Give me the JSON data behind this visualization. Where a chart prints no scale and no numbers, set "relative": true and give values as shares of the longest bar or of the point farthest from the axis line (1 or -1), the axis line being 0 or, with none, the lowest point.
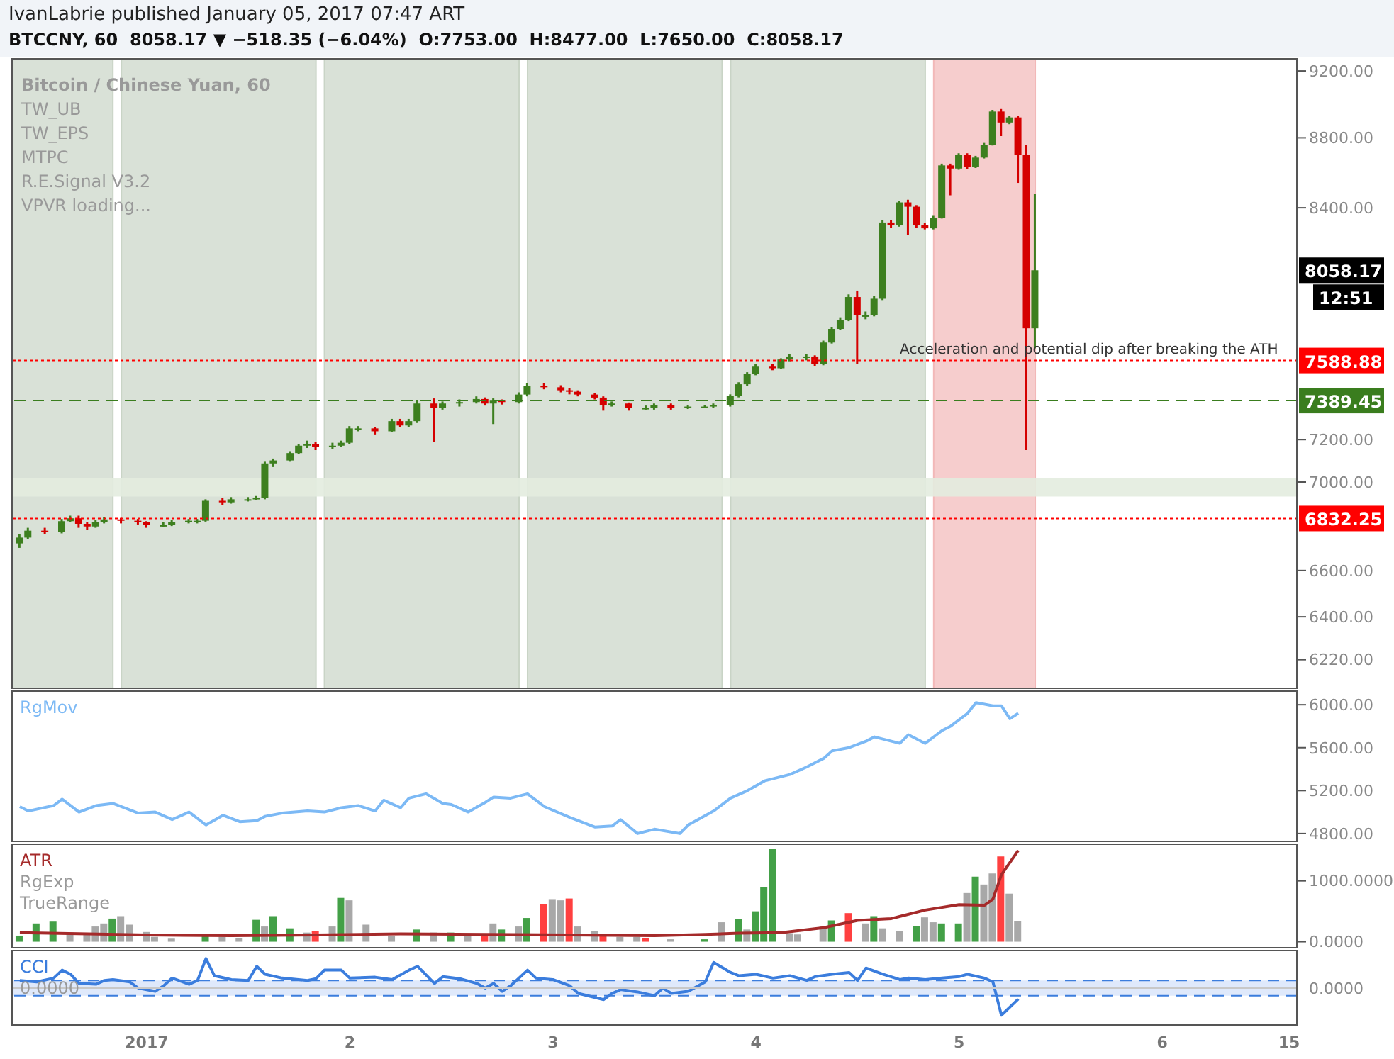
{
  "chart_data": [
    {
      "type": "candlestick",
      "title": "IvanLabrie published January 05, 2017 07:47 ART",
      "subtitle": "BTCCNY, 60  8058.17 ▼ −518.35 (−6.04%)  O:7753.00  H:8477.00  L:7650.00  C:8058.17",
      "x": [
        "2016-12-31T09:00",
        "2016-12-31T10:00",
        "2016-12-31T12:00",
        "2016-12-31T14:00",
        "2016-12-31T15:00",
        "2016-12-31T16:00",
        "2016-12-31T17:00",
        "2016-12-31T18:00",
        "2016-12-31T19:00",
        "2016-12-31T21:00",
        "2016-12-31T23:00",
        "2017-01-01T00:00",
        "2017-01-01T02:00",
        "2017-01-01T03:00",
        "2017-01-01T05:00",
        "2017-01-01T06:00",
        "2017-01-01T07:00",
        "2017-01-01T09:00",
        "2017-01-01T10:00",
        "2017-01-01T12:00",
        "2017-01-01T13:00",
        "2017-01-01T14:00",
        "2017-01-01T15:00",
        "2017-01-01T17:00",
        "2017-01-01T18:00",
        "2017-01-01T19:00",
        "2017-01-01T20:00",
        "2017-01-01T22:00",
        "2017-01-01T23:00",
        "2017-01-02T00:00",
        "2017-01-02T01:00",
        "2017-01-02T03:00",
        "2017-01-02T05:00",
        "2017-01-02T06:00",
        "2017-01-02T07:00",
        "2017-01-02T08:00",
        "2017-01-02T10:00",
        "2017-01-02T11:00",
        "2017-01-02T13:00",
        "2017-01-02T15:00",
        "2017-01-02T16:00",
        "2017-01-02T17:00",
        "2017-01-02T18:00",
        "2017-01-02T20:00",
        "2017-01-02T21:00",
        "2017-01-02T23:00",
        "2017-01-03T01:00",
        "2017-01-03T02:00",
        "2017-01-03T03:00",
        "2017-01-03T05:00",
        "2017-01-03T06:00",
        "2017-01-03T07:00",
        "2017-01-03T09:00",
        "2017-01-03T11:00",
        "2017-01-03T12:00",
        "2017-01-03T14:00",
        "2017-01-03T16:00",
        "2017-01-03T18:00",
        "2017-01-03T19:00",
        "2017-01-03T21:00",
        "2017-01-03T22:00",
        "2017-01-03T23:00",
        "2017-01-04T00:00",
        "2017-01-04T02:00",
        "2017-01-04T03:00",
        "2017-01-04T04:00",
        "2017-01-04T06:00",
        "2017-01-04T07:00",
        "2017-01-04T08:00",
        "2017-01-04T09:00",
        "2017-01-04T10:00",
        "2017-01-04T11:00",
        "2017-01-04T12:00",
        "2017-01-04T13:00",
        "2017-01-04T14:00",
        "2017-01-04T15:00",
        "2017-01-04T16:00",
        "2017-01-04T17:00",
        "2017-01-04T18:00",
        "2017-01-04T19:00",
        "2017-01-04T20:00",
        "2017-01-04T21:00",
        "2017-01-04T22:00",
        "2017-01-04T23:00",
        "2017-01-05T00:00",
        "2017-01-05T01:00",
        "2017-01-05T02:00",
        "2017-01-05T03:00",
        "2017-01-05T04:00",
        "2017-01-05T05:00",
        "2017-01-05T06:00",
        "2017-01-05T07:00",
        "2017-01-05T08:00",
        "2017-01-05T09:00"
      ],
      "ohlc": [
        [
          6720,
          6760,
          6700,
          6746
        ],
        [
          6746,
          6790,
          6740,
          6777
        ],
        [
          6777,
          6790,
          6760,
          6770
        ],
        [
          6770,
          6830,
          6765,
          6820
        ],
        [
          6820,
          6845,
          6815,
          6833
        ],
        [
          6833,
          6845,
          6790,
          6808
        ],
        [
          6808,
          6815,
          6780,
          6796
        ],
        [
          6796,
          6825,
          6790,
          6815
        ],
        [
          6815,
          6840,
          6810,
          6828
        ],
        [
          6828,
          6835,
          6810,
          6822
        ],
        [
          6822,
          6830,
          6805,
          6815
        ],
        [
          6815,
          6820,
          6790,
          6802
        ],
        [
          6802,
          6815,
          6795,
          6802
        ],
        [
          6802,
          6825,
          6798,
          6815
        ],
        [
          6815,
          6830,
          6810,
          6822
        ],
        [
          6822,
          6830,
          6810,
          6822
        ],
        [
          6822,
          6920,
          6818,
          6913
        ],
        [
          6913,
          6925,
          6895,
          6906
        ],
        [
          6906,
          6930,
          6900,
          6920
        ],
        [
          6920,
          6930,
          6910,
          6920
        ],
        [
          6920,
          6935,
          6915,
          6926
        ],
        [
          6926,
          7095,
          6920,
          7087
        ],
        [
          7087,
          7110,
          7070,
          7101
        ],
        [
          7101,
          7145,
          7095,
          7136
        ],
        [
          7136,
          7180,
          7130,
          7171
        ],
        [
          7171,
          7195,
          7160,
          7178
        ],
        [
          7178,
          7190,
          7150,
          7164
        ],
        [
          7164,
          7185,
          7155,
          7171
        ],
        [
          7171,
          7195,
          7165,
          7185
        ],
        [
          7185,
          7265,
          7180,
          7254
        ],
        [
          7254,
          7265,
          7240,
          7254
        ],
        [
          7254,
          7260,
          7225,
          7240
        ],
        [
          7240,
          7300,
          7235,
          7289
        ],
        [
          7289,
          7300,
          7260,
          7268
        ],
        [
          7268,
          7300,
          7260,
          7289
        ],
        [
          7289,
          7390,
          7280,
          7375
        ],
        [
          7375,
          7400,
          7190,
          7353
        ],
        [
          7353,
          7385,
          7345,
          7375
        ],
        [
          7375,
          7395,
          7360,
          7382
        ],
        [
          7382,
          7410,
          7375,
          7397
        ],
        [
          7397,
          7405,
          7365,
          7375
        ],
        [
          7375,
          7400,
          7275,
          7389
        ],
        [
          7389,
          7395,
          7370,
          7382
        ],
        [
          7382,
          7430,
          7375,
          7419
        ],
        [
          7419,
          7475,
          7410,
          7463
        ],
        [
          7463,
          7475,
          7445,
          7455
        ],
        [
          7455,
          7465,
          7430,
          7440
        ],
        [
          7440,
          7450,
          7420,
          7433
        ],
        [
          7433,
          7440,
          7410,
          7419
        ],
        [
          7419,
          7425,
          7395,
          7404
        ],
        [
          7404,
          7410,
          7340,
          7368
        ],
        [
          7368,
          7385,
          7360,
          7375
        ],
        [
          7375,
          7380,
          7340,
          7353
        ],
        [
          7353,
          7365,
          7345,
          7353
        ],
        [
          7353,
          7375,
          7345,
          7368
        ],
        [
          7368,
          7375,
          7345,
          7353
        ],
        [
          7353,
          7368,
          7348,
          7360
        ],
        [
          7360,
          7368,
          7352,
          7360
        ],
        [
          7360,
          7375,
          7355,
          7368
        ],
        [
          7368,
          7420,
          7360,
          7411
        ],
        [
          7411,
          7480,
          7405,
          7470
        ],
        [
          7470,
          7530,
          7460,
          7522
        ],
        [
          7522,
          7570,
          7515,
          7558
        ],
        [
          7558,
          7570,
          7540,
          7550
        ],
        [
          7550,
          7600,
          7545,
          7594
        ],
        [
          7594,
          7620,
          7585,
          7609
        ],
        [
          7609,
          7620,
          7590,
          7609
        ],
        [
          7609,
          7615,
          7560,
          7570
        ],
        [
          7570,
          7690,
          7565,
          7680
        ],
        [
          7680,
          7760,
          7675,
          7750
        ],
        [
          7750,
          7810,
          7745,
          7797
        ],
        [
          7797,
          7930,
          7790,
          7916
        ],
        [
          7916,
          7950,
          7570,
          7820
        ],
        [
          7820,
          7840,
          7800,
          7820
        ],
        [
          7820,
          7920,
          7815,
          7907
        ],
        [
          7907,
          8330,
          7900,
          8318
        ],
        [
          8318,
          8330,
          8290,
          8302
        ],
        [
          8302,
          8440,
          8295,
          8430
        ],
        [
          8430,
          8445,
          8250,
          8406
        ],
        [
          8406,
          8415,
          8290,
          8302
        ],
        [
          8302,
          8315,
          8280,
          8286
        ],
        [
          8286,
          8355,
          8280,
          8345
        ],
        [
          8345,
          8650,
          8340,
          8640
        ],
        [
          8640,
          8650,
          8470,
          8622
        ],
        [
          8622,
          8710,
          8615,
          8700
        ],
        [
          8700,
          8710,
          8620,
          8630
        ],
        [
          8630,
          8695,
          8625,
          8685
        ],
        [
          8685,
          8770,
          8680,
          8760
        ],
        [
          8760,
          8965,
          8755,
          8955
        ],
        [
          8955,
          8970,
          8810,
          8890
        ],
        [
          8890,
          8930,
          8880,
          8920
        ],
        [
          8920,
          8930,
          8540,
          8700
        ],
        [
          8700,
          8760,
          7150,
          7753
        ],
        [
          7753,
          8477,
          7650,
          8058.17
        ]
      ],
      "xlim": [
        "2016-12-31T08:00",
        "2017-01-06T16:00"
      ],
      "ylim": [
        6100,
        9270
      ],
      "log": "y",
      "tick_labels": "y",
      "yticks": [
        {
          "value": 6220,
          "label": "6220.00"
        },
        {
          "value": 6400,
          "label": "6400.00"
        },
        {
          "value": 6600,
          "label": "6600.00"
        },
        {
          "value": 7000,
          "label": "7000.00"
        },
        {
          "value": 7200,
          "label": "7200.00"
        },
        {
          "value": 8400,
          "label": "8400.00"
        },
        {
          "value": 8800,
          "label": "8800.00"
        },
        {
          "value": 9200,
          "label": "9200.00"
        }
      ],
      "ref_lines": [
        {
          "axis": "y",
          "value": 7588.88,
          "label": "7588.88",
          "color": "#ff0000",
          "line_style": "dotted"
        },
        {
          "axis": "y",
          "value": 7389.45,
          "label": "7389.45",
          "color": "#3a7d1e",
          "line_style": "dashed"
        },
        {
          "axis": "y",
          "value": 6832.25,
          "label": "6832.25",
          "color": "#ff0000",
          "line_style": "dotted"
        }
      ],
      "bands": [
        {
          "axis": "x",
          "from": "2016-12-31T08:00",
          "to": "2016-12-31T20:00",
          "color": "#c9d4c6"
        },
        {
          "axis": "x",
          "from": "2016-12-31T21:00",
          "to": "2017-01-01T20:00",
          "color": "#c9d4c6"
        },
        {
          "axis": "x",
          "from": "2017-01-01T21:00",
          "to": "2017-01-02T20:00",
          "color": "#c9d4c6"
        },
        {
          "axis": "x",
          "from": "2017-01-02T21:00",
          "to": "2017-01-03T20:00",
          "color": "#c9d4c6"
        },
        {
          "axis": "x",
          "from": "2017-01-03T21:00",
          "to": "2017-01-04T20:00",
          "color": "#c9d4c6"
        },
        {
          "axis": "x",
          "from": "2017-01-04T21:00",
          "to": "2017-01-05T09:00",
          "color": "#f2b8b8"
        },
        {
          "axis": "y",
          "from": 6933,
          "to": 7018,
          "color": "#e3ecdf"
        }
      ],
      "annotations": [
        "Bitcoin / Chinese Yuan, 60",
        "TW_UB",
        "TW_EPS",
        "MTPC",
        "R.E.Signal V3.2",
        "VPVR loading...",
        {
          "text": "Acceleration and potential dip after breaking the ATH",
          "x": "2017-01-04T17:00",
          "y": 7588.88
        },
        "8058.17",
        "12:51"
      ]
    },
    {
      "type": "line",
      "legend": "top left",
      "marker": "none",
      "tick_labels": "y",
      "xlim": [
        "2016-12-31T08:00",
        "2017-01-06T16:00"
      ],
      "ylim": [
        4720,
        6120
      ],
      "yticks": [
        {
          "value": 4800,
          "label": "4800.00"
        },
        {
          "value": 5200,
          "label": "5200.00"
        },
        {
          "value": 5600,
          "label": "5600.00"
        },
        {
          "value": 6000,
          "label": "6000.00"
        }
      ],
      "series": [
        {
          "name": "RgMov",
          "color": "#7cb9f5",
          "x": [
            "2016-12-31T09:00",
            "2016-12-31T10:00",
            "2016-12-31T13:00",
            "2016-12-31T14:00",
            "2016-12-31T16:00",
            "2016-12-31T18:00",
            "2016-12-31T20:00",
            "2016-12-31T23:00",
            "2017-01-01T01:00",
            "2017-01-01T03:00",
            "2017-01-01T05:00",
            "2017-01-01T07:00",
            "2017-01-01T09:00",
            "2017-01-01T11:00",
            "2017-01-01T13:00",
            "2017-01-01T14:00",
            "2017-01-01T16:00",
            "2017-01-01T19:00",
            "2017-01-01T21:00",
            "2017-01-01T23:00",
            "2017-01-02T01:00",
            "2017-01-02T03:00",
            "2017-01-02T04:00",
            "2017-01-02T06:00",
            "2017-01-02T07:00",
            "2017-01-02T09:00",
            "2017-01-02T11:00",
            "2017-01-02T12:00",
            "2017-01-02T14:00",
            "2017-01-02T16:00",
            "2017-01-02T17:00",
            "2017-01-02T19:00",
            "2017-01-02T21:00",
            "2017-01-02T23:00",
            "2017-01-03T02:00",
            "2017-01-03T05:00",
            "2017-01-03T07:00",
            "2017-01-03T08:00",
            "2017-01-03T10:00",
            "2017-01-03T12:00",
            "2017-01-03T15:00",
            "2017-01-03T16:00",
            "2017-01-03T19:00",
            "2017-01-03T21:00",
            "2017-01-03T23:00",
            "2017-01-04T01:00",
            "2017-01-04T03:00",
            "2017-01-04T04:00",
            "2017-01-04T06:00",
            "2017-01-04T08:00",
            "2017-01-04T09:00",
            "2017-01-04T11:00",
            "2017-01-04T13:00",
            "2017-01-04T14:00",
            "2017-01-04T17:00",
            "2017-01-04T18:00",
            "2017-01-04T20:00",
            "2017-01-04T22:00",
            "2017-01-04T23:00",
            "2017-01-05T01:00",
            "2017-01-05T02:00",
            "2017-01-05T04:00",
            "2017-01-05T05:00",
            "2017-01-05T06:00",
            "2017-01-05T07:00"
          ],
          "values": [
            5050,
            5010,
            5060,
            5120,
            5000,
            5060,
            5080,
            4990,
            5000,
            4930,
            5000,
            4880,
            4970,
            4910,
            4920,
            4960,
            4990,
            5010,
            5000,
            5040,
            5060,
            5010,
            5110,
            5040,
            5130,
            5170,
            5080,
            5070,
            5000,
            5090,
            5140,
            5130,
            5170,
            5050,
            4950,
            4860,
            4870,
            4930,
            4800,
            4840,
            4800,
            4880,
            5010,
            5130,
            5200,
            5290,
            5330,
            5350,
            5420,
            5500,
            5570,
            5600,
            5660,
            5700,
            5640,
            5720,
            5640,
            5760,
            5800,
            5920,
            6020,
            5990,
            5990,
            5870,
            5920
          ]
        }
      ]
    },
    {
      "type": "bar",
      "legend": "top left",
      "marker": "none",
      "tick_labels": "y",
      "xlim": [
        "2016-12-31T08:00",
        "2017-01-06T16:00"
      ],
      "ylim": [
        -110,
        1590
      ],
      "yticks": [
        {
          "value": 0,
          "label": "0.0000"
        },
        {
          "value": 1000,
          "label": "1000.0000"
        }
      ],
      "annotations": [
        "RgExp"
      ],
      "series": [
        {
          "name": "ATR",
          "type": "line",
          "color": "#a52a2a",
          "x": [
            "2016-12-31T09:00",
            "2017-01-01T00:00",
            "2017-01-01T10:00",
            "2017-01-01T20:00",
            "2017-01-02T06:00",
            "2017-01-02T16:00",
            "2017-01-03T02:00",
            "2017-01-03T12:00",
            "2017-01-03T18:00",
            "2017-01-03T22:00",
            "2017-01-04T03:00",
            "2017-01-04T08:00",
            "2017-01-04T12:00",
            "2017-01-04T16:00",
            "2017-01-04T20:00",
            "2017-01-05T00:00",
            "2017-01-05T03:00",
            "2017-01-05T04:00",
            "2017-01-05T05:00",
            "2017-01-05T07:00"
          ],
          "values": [
            150,
            110,
            100,
            110,
            130,
            120,
            110,
            100,
            120,
            140,
            150,
            230,
            350,
            380,
            520,
            610,
            600,
            700,
            1100,
            1500
          ]
        },
        {
          "name": "TrueRange",
          "type": "bar",
          "x": [
            "2016-12-31T09:00",
            "2016-12-31T11:00",
            "2016-12-31T13:00",
            "2016-12-31T15:00",
            "2016-12-31T17:00",
            "2016-12-31T18:00",
            "2016-12-31T19:00",
            "2016-12-31T20:00",
            "2016-12-31T21:00",
            "2016-12-31T22:00",
            "2017-01-01T00:00",
            "2017-01-01T01:00",
            "2017-01-01T03:00",
            "2017-01-01T07:00",
            "2017-01-01T09:00",
            "2017-01-01T11:00",
            "2017-01-01T13:00",
            "2017-01-01T14:00",
            "2017-01-01T15:00",
            "2017-01-01T17:00",
            "2017-01-01T19:00",
            "2017-01-01T20:00",
            "2017-01-01T22:00",
            "2017-01-01T23:00",
            "2017-01-02T00:00",
            "2017-01-02T02:00",
            "2017-01-02T05:00",
            "2017-01-02T08:00",
            "2017-01-02T10:00",
            "2017-01-02T12:00",
            "2017-01-02T14:00",
            "2017-01-02T16:00",
            "2017-01-02T17:00",
            "2017-01-02T18:00",
            "2017-01-02T20:00",
            "2017-01-02T21:00",
            "2017-01-02T23:00",
            "2017-01-03T00:00",
            "2017-01-03T01:00",
            "2017-01-03T02:00",
            "2017-01-03T03:00",
            "2017-01-03T05:00",
            "2017-01-03T06:00",
            "2017-01-03T08:00",
            "2017-01-03T10:00",
            "2017-01-03T11:00",
            "2017-01-03T14:00",
            "2017-01-03T18:00",
            "2017-01-03T20:00",
            "2017-01-03T22:00",
            "2017-01-03T23:00",
            "2017-01-04T00:00",
            "2017-01-04T01:00",
            "2017-01-04T02:00",
            "2017-01-04T04:00",
            "2017-01-04T05:00",
            "2017-01-04T08:00",
            "2017-01-04T09:00",
            "2017-01-04T11:00",
            "2017-01-04T13:00",
            "2017-01-04T14:00",
            "2017-01-04T15:00",
            "2017-01-04T17:00",
            "2017-01-04T19:00",
            "2017-01-04T20:00",
            "2017-01-04T21:00",
            "2017-01-04T22:00",
            "2017-01-05T00:00",
            "2017-01-05T01:00",
            "2017-01-05T02:00",
            "2017-01-05T03:00",
            "2017-01-05T04:00",
            "2017-01-05T05:00",
            "2017-01-05T06:00",
            "2017-01-05T07:00"
          ],
          "values": [
            100,
            300,
            330,
            150,
            120,
            250,
            300,
            380,
            420,
            280,
            160,
            80,
            50,
            120,
            80,
            60,
            360,
            250,
            420,
            220,
            150,
            170,
            250,
            720,
            680,
            280,
            100,
            200,
            150,
            150,
            120,
            100,
            300,
            200,
            250,
            390,
            620,
            700,
            680,
            710,
            250,
            180,
            100,
            80,
            80,
            60,
            40,
            40,
            320,
            370,
            200,
            500,
            900,
            1520,
            140,
            120,
            250,
            350,
            470,
            300,
            420,
            220,
            180,
            260,
            400,
            320,
            300,
            300,
            800,
            1070,
            940,
            1120,
            1400,
            790,
            340
          ],
          "colors": [
            "#43a047",
            "#43a047",
            "#43a047",
            "#a8a8a8",
            "#a8a8a8",
            "#a8a8a8",
            "#a8a8a8",
            "#43a047",
            "#a8a8a8",
            "#a8a8a8",
            "#a8a8a8",
            "#a8a8a8",
            "#a8a8a8",
            "#43a047",
            "#a8a8a8",
            "#a8a8a8",
            "#43a047",
            "#a8a8a8",
            "#43a047",
            "#43a047",
            "#a8a8a8",
            "#ff4040",
            "#a8a8a8",
            "#43a047",
            "#a8a8a8",
            "#a8a8a8",
            "#a8a8a8",
            "#43a047",
            "#a8a8a8",
            "#43a047",
            "#a8a8a8",
            "#ff4040",
            "#a8a8a8",
            "#43a047",
            "#a8a8a8",
            "#43a047",
            "#ff4040",
            "#a8a8a8",
            "#a8a8a8",
            "#ff4040",
            "#a8a8a8",
            "#a8a8a8",
            "#ff4040",
            "#a8a8a8",
            "#a8a8a8",
            "#ff4040",
            "#a8a8a8",
            "#43a047",
            "#a8a8a8",
            "#43a047",
            "#a8a8a8",
            "#43a047",
            "#43a047",
            "#43a047",
            "#a8a8a8",
            "#a8a8a8",
            "#a8a8a8",
            "#43a047",
            "#ff4040",
            "#a8a8a8",
            "#43a047",
            "#a8a8a8",
            "#a8a8a8",
            "#43a047",
            "#a8a8a8",
            "#a8a8a8",
            "#43a047",
            "#43a047",
            "#a8a8a8",
            "#43a047",
            "#a8a8a8",
            "#a8a8a8",
            "#ff4040",
            "#a8a8a8",
            "#a8a8a8"
          ]
        }
      ]
    },
    {
      "type": "line",
      "relative": true,
      "legend": "top left",
      "marker": "none",
      "tick_labels": "x",
      "xlim": [
        "2016-12-31T08:00",
        "2017-01-06T16:00"
      ],
      "xticks": [
        {
          "value": "2017-01-01",
          "label": "2017"
        },
        {
          "value": "2017-01-02",
          "label": "2"
        },
        {
          "value": "2017-01-03",
          "label": "3"
        },
        {
          "value": "2017-01-04",
          "label": "4"
        },
        {
          "value": "2017-01-05",
          "label": "5"
        },
        {
          "value": "2017-01-06",
          "label": "6"
        },
        {
          "value": "2017-01-06T15:00",
          "label": "15"
        }
      ],
      "bands": [
        {
          "axis": "y",
          "from": -0.26,
          "to": 0.26,
          "color": "#dce7fb"
        }
      ],
      "ref_lines": [
        {
          "axis": "y",
          "value": 0.26,
          "color": "#3b7ddd",
          "line_style": "dashed"
        },
        {
          "axis": "y",
          "value": -0.26,
          "color": "#3b7ddd",
          "line_style": "dashed"
        }
      ],
      "annotations": [
        "0.0000"
      ],
      "series": [
        {
          "name": "CCI",
          "color": "#3b7ddd",
          "x": [
            "2016-12-31T09:00",
            "2016-12-31T11:00",
            "2016-12-31T13:00",
            "2016-12-31T14:00",
            "2016-12-31T15:00",
            "2016-12-31T16:00",
            "2016-12-31T18:00",
            "2016-12-31T19:00",
            "2016-12-31T20:00",
            "2016-12-31T22:00",
            "2016-12-31T23:00",
            "2017-01-01T01:00",
            "2017-01-01T02:00",
            "2017-01-01T03:00",
            "2017-01-01T05:00",
            "2017-01-01T06:00",
            "2017-01-01T07:00",
            "2017-01-01T08:00",
            "2017-01-01T10:00",
            "2017-01-01T12:00",
            "2017-01-01T13:00",
            "2017-01-01T14:00",
            "2017-01-01T16:00",
            "2017-01-01T19:00",
            "2017-01-01T20:00",
            "2017-01-01T21:00",
            "2017-01-01T23:00",
            "2017-01-02T00:00",
            "2017-01-02T03:00",
            "2017-01-02T05:00",
            "2017-01-02T07:00",
            "2017-01-02T08:00",
            "2017-01-02T10:00",
            "2017-01-02T11:00",
            "2017-01-02T13:00",
            "2017-01-02T15:00",
            "2017-01-02T16:00",
            "2017-01-02T17:00",
            "2017-01-02T18:00",
            "2017-01-02T19:00",
            "2017-01-02T21:00",
            "2017-01-02T22:00",
            "2017-01-03T00:00",
            "2017-01-03T02:00",
            "2017-01-03T03:00",
            "2017-01-03T06:00",
            "2017-01-03T07:00",
            "2017-01-03T08:00",
            "2017-01-03T10:00",
            "2017-01-03T12:00",
            "2017-01-03T13:00",
            "2017-01-03T14:00",
            "2017-01-03T16:00",
            "2017-01-03T18:00",
            "2017-01-03T19:00",
            "2017-01-03T21:00",
            "2017-01-03T22:00",
            "2017-01-04T00:00",
            "2017-01-04T02:00",
            "2017-01-04T04:00",
            "2017-01-04T06:00",
            "2017-01-04T07:00",
            "2017-01-04T09:00",
            "2017-01-04T11:00",
            "2017-01-04T12:00",
            "2017-01-04T13:00",
            "2017-01-04T15:00",
            "2017-01-04T17:00",
            "2017-01-04T18:00",
            "2017-01-04T20:00",
            "2017-01-04T22:00",
            "2017-01-05T00:00",
            "2017-01-05T01:00",
            "2017-01-05T03:00",
            "2017-01-05T04:00",
            "2017-01-05T05:00",
            "2017-01-05T07:00"
          ],
          "values": [
            0.26,
            0.21,
            0.34,
            0.61,
            0.47,
            0.16,
            0.13,
            0.26,
            0.29,
            0.21,
            0,
            -0.11,
            0.08,
            0.34,
            0.13,
            0.26,
            1,
            0.42,
            0.29,
            0.26,
            0.74,
            0.47,
            0.34,
            0.26,
            0.32,
            0.61,
            0.61,
            0.34,
            0.37,
            0.29,
            0.61,
            0.74,
            0.16,
            0.39,
            0.32,
            0.16,
            0,
            0.16,
            -0.11,
            0.08,
            0.61,
            0.34,
            0.29,
            0.08,
            -0.18,
            -0.39,
            -0.18,
            -0.05,
            -0.13,
            -0.26,
            0,
            -0.18,
            -0.11,
            0.21,
            0.87,
            0.53,
            0.42,
            0.47,
            0.34,
            0.42,
            0.26,
            0.39,
            0.47,
            0.53,
            0.26,
            0.68,
            0.47,
            0.29,
            0.34,
            0.29,
            0.34,
            0.39,
            0.47,
            0.34,
            0.21,
            -0.92,
            -0.37
          ]
        }
      ]
    }
  ]
}
